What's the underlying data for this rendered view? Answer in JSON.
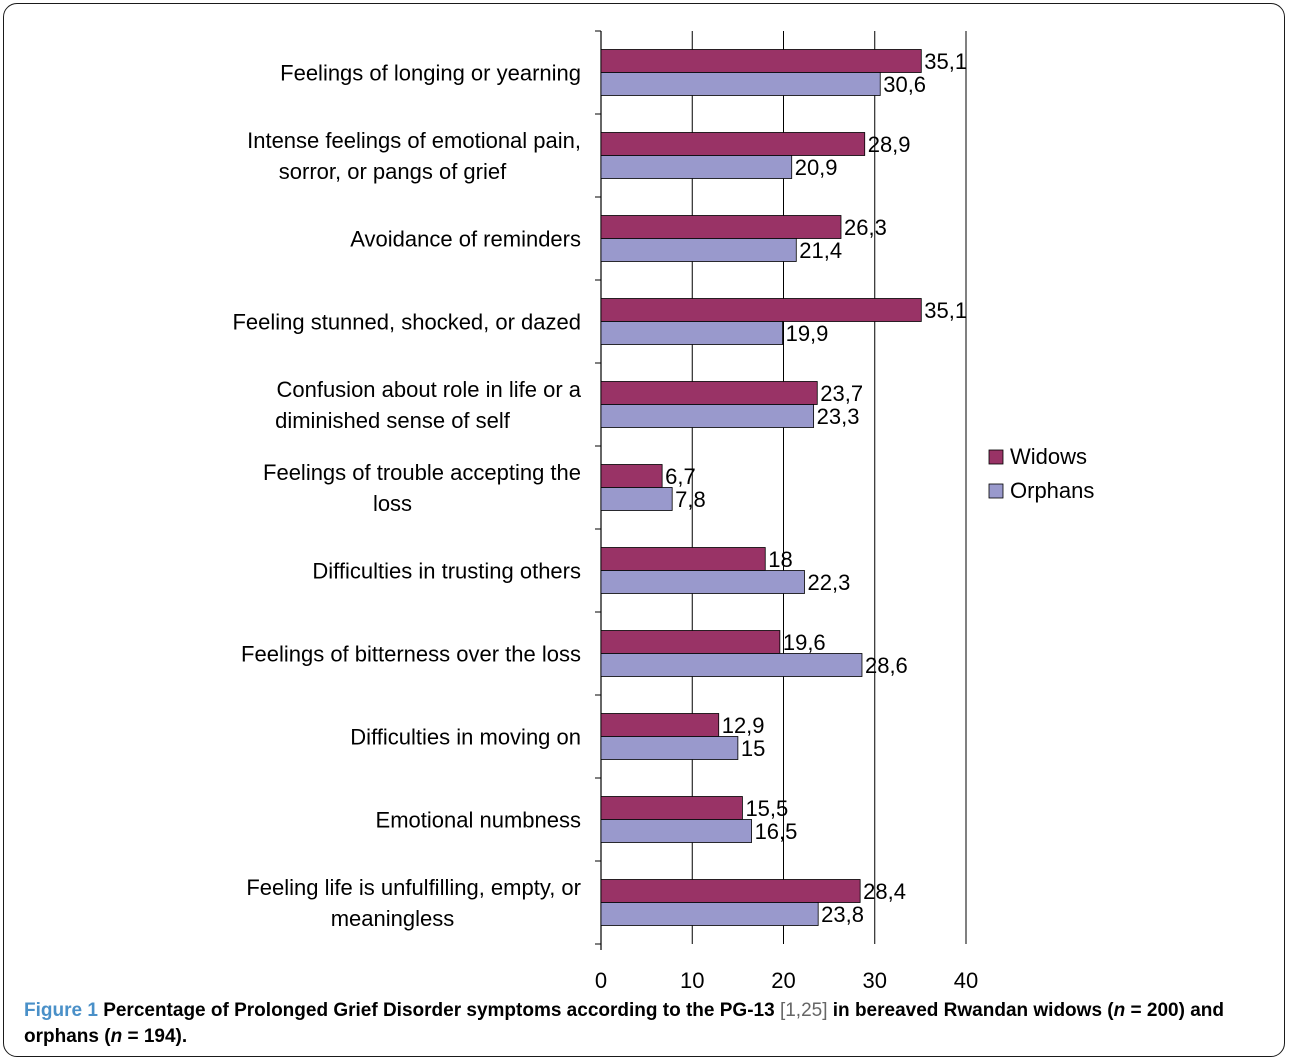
{
  "chart_data": {
    "type": "bar",
    "orientation": "horizontal",
    "categories": [
      "Feelings of longing or yearning",
      "Intense feelings of emotional pain, sorror, or pangs of grief",
      "Avoidance of reminders",
      "Feeling stunned, shocked, or dazed",
      "Confusion about role in life or a diminished sense of self",
      "Feelings of trouble accepting the loss",
      "Difficulties in trusting others",
      "Feelings of bitterness over the loss",
      "Difficulties in moving on",
      "Emotional numbness",
      "Feeling life is unfulfilling, empty, or meaningless"
    ],
    "category_lines": [
      [
        "Feelings of longing or yearning"
      ],
      [
        "Intense feelings of emotional pain,",
        "sorror, or pangs of grief"
      ],
      [
        "Avoidance of reminders"
      ],
      [
        "Feeling stunned, shocked, or dazed"
      ],
      [
        "Confusion about role in life or a",
        "diminished sense of self"
      ],
      [
        "Feelings of trouble accepting the",
        "loss"
      ],
      [
        "Difficulties in trusting others"
      ],
      [
        "Feelings of bitterness over the loss"
      ],
      [
        "Difficulties in moving on"
      ],
      [
        "Emotional numbness"
      ],
      [
        "Feeling life is unfulfilling, empty, or",
        "meaningless"
      ]
    ],
    "series": [
      {
        "name": "Widows",
        "color": "#993366",
        "values": [
          35.1,
          28.9,
          26.3,
          35.1,
          23.7,
          6.7,
          18,
          19.6,
          12.9,
          15.5,
          28.4
        ],
        "labels": [
          "35,1",
          "28,9",
          "26,3",
          "35,1",
          "23,7",
          "6,7",
          "18",
          "19,6",
          "12,9",
          "15,5",
          "28,4"
        ]
      },
      {
        "name": "Orphans",
        "color": "#9999cc",
        "values": [
          30.6,
          20.9,
          21.4,
          19.9,
          23.3,
          7.8,
          22.3,
          28.6,
          15,
          16.5,
          23.8
        ],
        "labels": [
          "30,6",
          "20,9",
          "21,4",
          "19,9",
          "23,3",
          "7,8",
          "22,3",
          "28,6",
          "15",
          "16,5",
          "23,8"
        ]
      }
    ],
    "xlim": [
      0,
      40
    ],
    "xticks": [
      "0",
      "10",
      "20",
      "30",
      "40"
    ],
    "grid": "vertical",
    "legend_position": "right"
  },
  "caption": {
    "figure_label": "Figure 1",
    "text_a": "Percentage of Prolonged Grief Disorder symptoms according to the PG-13",
    "refs": "[1,25]",
    "text_b": "in bereaved Rwandan widows (",
    "n_symbol_1": "n",
    "text_c": "= 200) and",
    "text_d": "orphans (",
    "n_symbol_2": "n",
    "text_e": "= 194)."
  }
}
